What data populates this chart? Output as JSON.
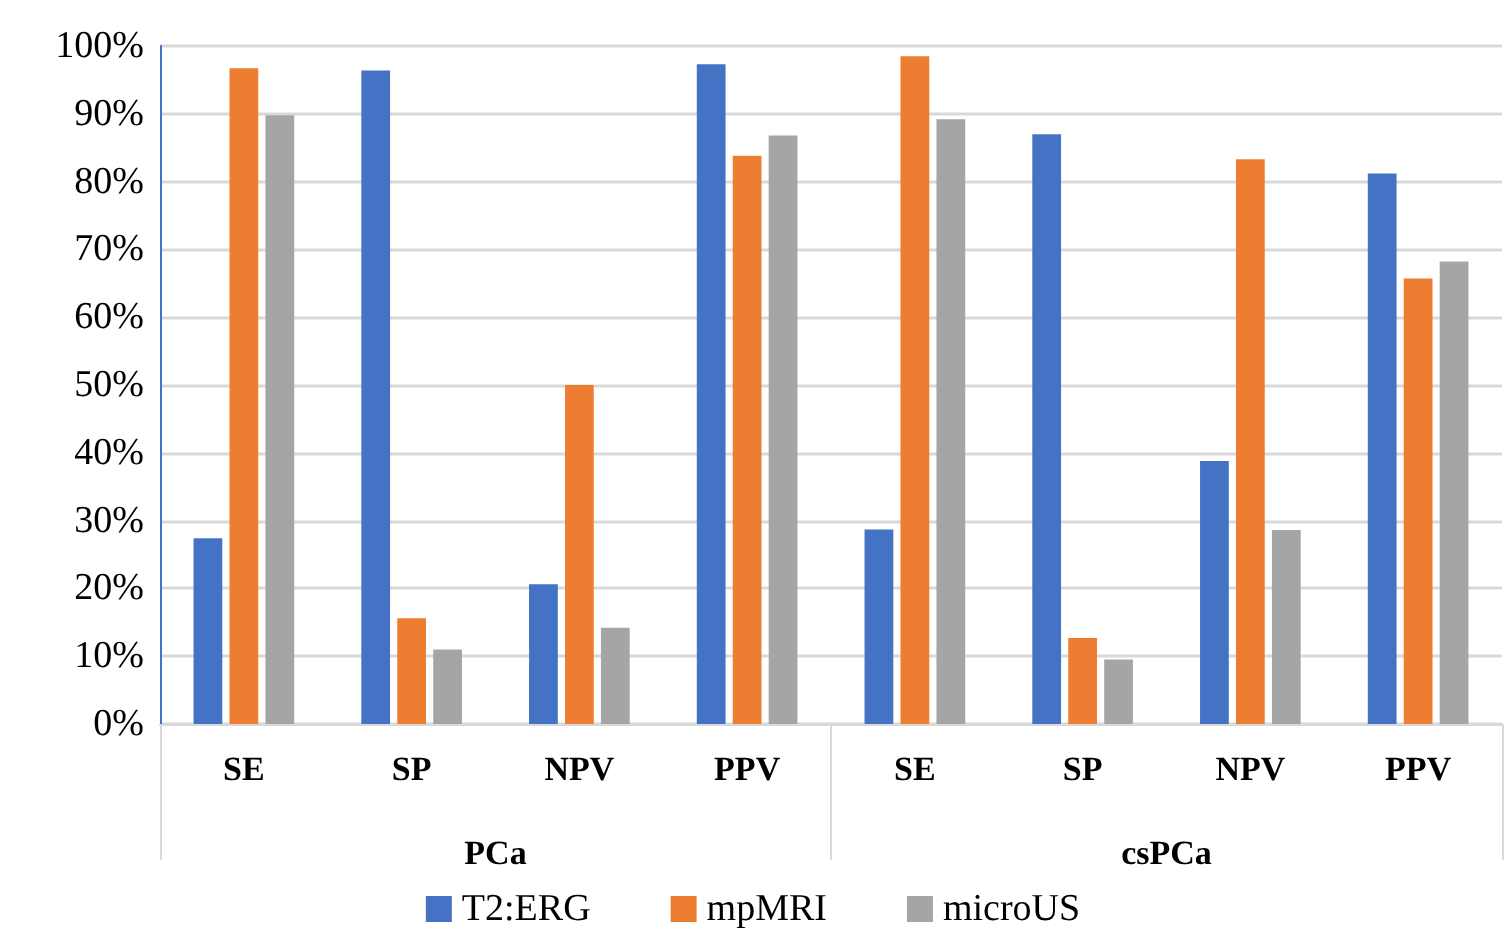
{
  "chart_data": {
    "type": "bar",
    "categories": [
      "SE",
      "SP",
      "NPV",
      "PPV",
      "SE",
      "SP",
      "NPV",
      "PPV"
    ],
    "series": [
      {
        "name": "T2:ERG",
        "color": "#4472c4",
        "values": [
          27.4,
          96.4,
          20.6,
          97.3,
          28.7,
          87.0,
          38.8,
          81.2
        ]
      },
      {
        "name": "mpMRI",
        "color": "#ed7d31",
        "values": [
          96.7,
          15.6,
          50.0,
          83.8,
          98.5,
          12.7,
          83.3,
          65.7
        ]
      },
      {
        "name": "microUS",
        "color": "#a5a5a5",
        "values": [
          89.8,
          11.0,
          14.2,
          86.8,
          89.2,
          9.5,
          28.6,
          68.2
        ]
      }
    ],
    "annotations": [
      "PCa",
      "csPCa"
    ],
    "ylim": [
      0,
      100
    ],
    "yticks": [
      {
        "value": 0,
        "label": "0%"
      },
      {
        "value": 10,
        "label": "10%"
      },
      {
        "value": 20,
        "label": "20%"
      },
      {
        "value": 30,
        "label": "30%"
      },
      {
        "value": 40,
        "label": "40%"
      },
      {
        "value": 50,
        "label": "50%"
      },
      {
        "value": 60,
        "label": "60%"
      },
      {
        "value": 70,
        "label": "70%"
      },
      {
        "value": 80,
        "label": "80%"
      },
      {
        "value": 90,
        "label": "90%"
      },
      {
        "value": 100,
        "label": "100%"
      }
    ],
    "grid": "y",
    "legend": "bottom"
  }
}
